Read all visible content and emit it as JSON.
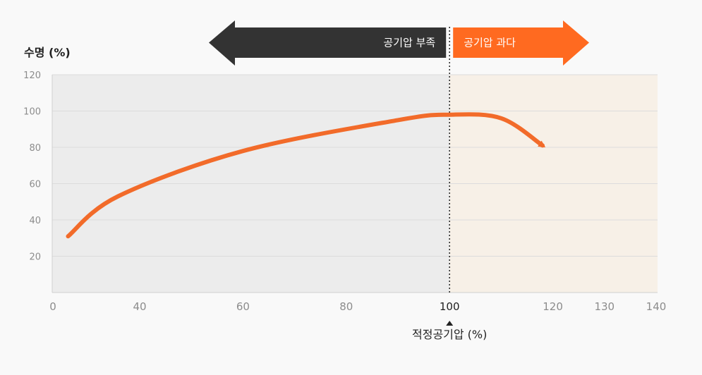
{
  "chart_data": {
    "type": "line",
    "title": "",
    "ylabel": "수명 (%)",
    "xlabel": "적정공기압 (%)",
    "xlim": [
      0,
      140
    ],
    "ylim": [
      0,
      120
    ],
    "x_ticks": [
      0,
      40,
      60,
      80,
      100,
      120,
      130,
      140
    ],
    "y_ticks": [
      20,
      40,
      60,
      80,
      100,
      120
    ],
    "highlight_x": 100,
    "grid": true,
    "regions": [
      {
        "label": "공기압 부족",
        "from": 0,
        "to": 100,
        "fill": "#ececec",
        "arrow_color": "#333333"
      },
      {
        "label": "공기압 과다",
        "from": 100,
        "to": 140,
        "fill": "#f7f0e7",
        "arrow_color": "#ff6a20"
      }
    ],
    "series": [
      {
        "color": "#f26b2a",
        "points": [
          [
            7,
            31
          ],
          [
            30,
            53
          ],
          [
            60,
            78
          ],
          [
            90,
            95
          ],
          [
            100,
            98
          ],
          [
            110,
            96
          ],
          [
            118,
            81
          ]
        ]
      }
    ]
  }
}
